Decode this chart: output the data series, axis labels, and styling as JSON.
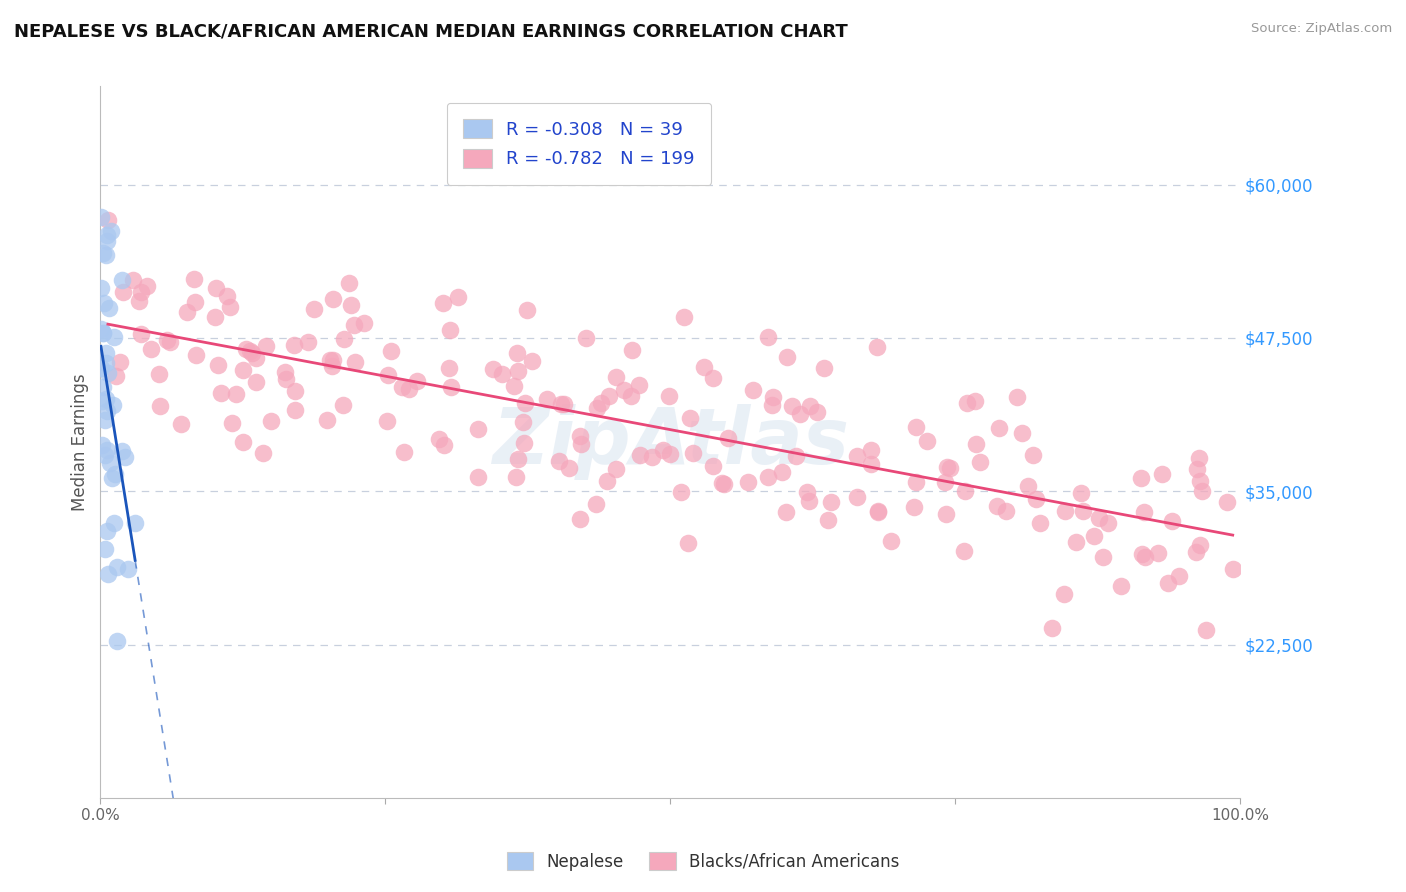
{
  "title": "NEPALESE VS BLACK/AFRICAN AMERICAN MEDIAN EARNINGS CORRELATION CHART",
  "source": "Source: ZipAtlas.com",
  "ylabel": "Median Earnings",
  "y_ticks": [
    22500,
    35000,
    47500,
    60000
  ],
  "y_tick_labels": [
    "$22,500",
    "$35,000",
    "$47,500",
    "$60,000"
  ],
  "xlim": [
    0.0,
    100.0
  ],
  "ylim": [
    10000,
    68000
  ],
  "nepalese_R": -0.308,
  "nepalese_N": 39,
  "baa_R": -0.782,
  "baa_N": 199,
  "nepalese_color": "#aac8f0",
  "baa_color": "#f5a8bc",
  "nepalese_line_color": "#1a55bb",
  "baa_line_color": "#e84878",
  "legend_label_1": "Nepalese",
  "legend_label_2": "Blacks/African Americans",
  "watermark": "ZipAtlas",
  "background_color": "#ffffff",
  "grid_color": "#c8d0de"
}
